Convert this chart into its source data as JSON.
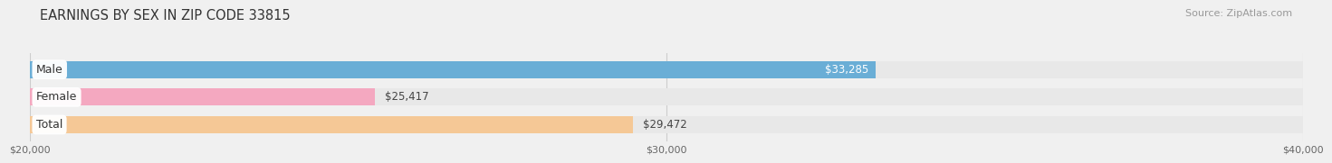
{
  "title": "EARNINGS BY SEX IN ZIP CODE 33815",
  "source": "Source: ZipAtlas.com",
  "categories": [
    "Male",
    "Female",
    "Total"
  ],
  "values": [
    33285,
    25417,
    29472
  ],
  "bar_colors": [
    "#6aaed6",
    "#f4a8c0",
    "#f5c896"
  ],
  "track_color": "#e8e8e8",
  "label_bg_color": "#ffffff",
  "xmin": 20000,
  "xmax": 40000,
  "xticks": [
    20000,
    30000,
    40000
  ],
  "xtick_labels": [
    "$20,000",
    "$30,000",
    "$40,000"
  ],
  "title_fontsize": 10.5,
  "source_fontsize": 8,
  "bar_label_fontsize": 8.5,
  "cat_label_fontsize": 9,
  "value_label_colors": [
    "#ffffff",
    "#555555",
    "#555555"
  ],
  "fig_bg_color": "#f0f0f0"
}
